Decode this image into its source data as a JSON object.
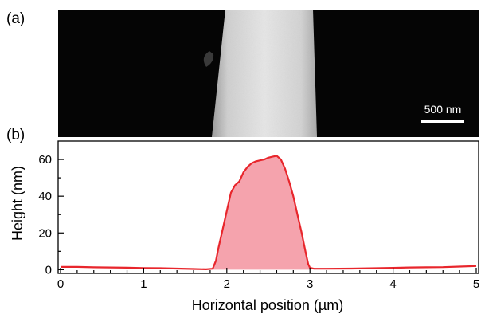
{
  "panels": {
    "a_label": "(a)",
    "b_label": "(b)"
  },
  "micrograph": {
    "scale_bar_label": "500 nm"
  },
  "chart_data": {
    "type": "area",
    "xlabel": "Horizontal position (µm)",
    "ylabel": "Height (nm)",
    "xlim": [
      0,
      5
    ],
    "ylim": [
      -2,
      70
    ],
    "x_ticks": [
      0,
      1,
      2,
      3,
      4,
      5
    ],
    "y_ticks": [
      0,
      20,
      40,
      60
    ],
    "grid": false,
    "line_color": "#e8262c",
    "fill_color": "#f5a3ad",
    "series": [
      {
        "x": [
          0,
          0.2,
          0.4,
          0.6,
          0.8,
          1.0,
          1.2,
          1.4,
          1.6,
          1.75,
          1.83,
          1.87,
          1.9,
          1.95,
          2.0,
          2.05,
          2.1,
          2.15,
          2.2,
          2.25,
          2.3,
          2.35,
          2.4,
          2.45,
          2.5,
          2.55,
          2.6,
          2.65,
          2.7,
          2.75,
          2.8,
          2.85,
          2.9,
          2.95,
          2.98,
          3.0,
          3.05,
          3.2,
          3.5,
          3.8,
          4.0,
          4.2,
          4.4,
          4.6,
          4.8,
          5.0
        ],
        "y": [
          1.5,
          1.5,
          1.3,
          1.2,
          1.1,
          0.9,
          0.8,
          0.6,
          0.4,
          0.2,
          0.5,
          5,
          12,
          22,
          32,
          42,
          46,
          48,
          53,
          56,
          58,
          59,
          59.5,
          60,
          61,
          61.5,
          62,
          60,
          55,
          48,
          40,
          30,
          20,
          9,
          3,
          1,
          0.5,
          0.5,
          0.6,
          0.8,
          1.0,
          1.2,
          1.3,
          1.4,
          1.7,
          2.0
        ]
      }
    ]
  }
}
